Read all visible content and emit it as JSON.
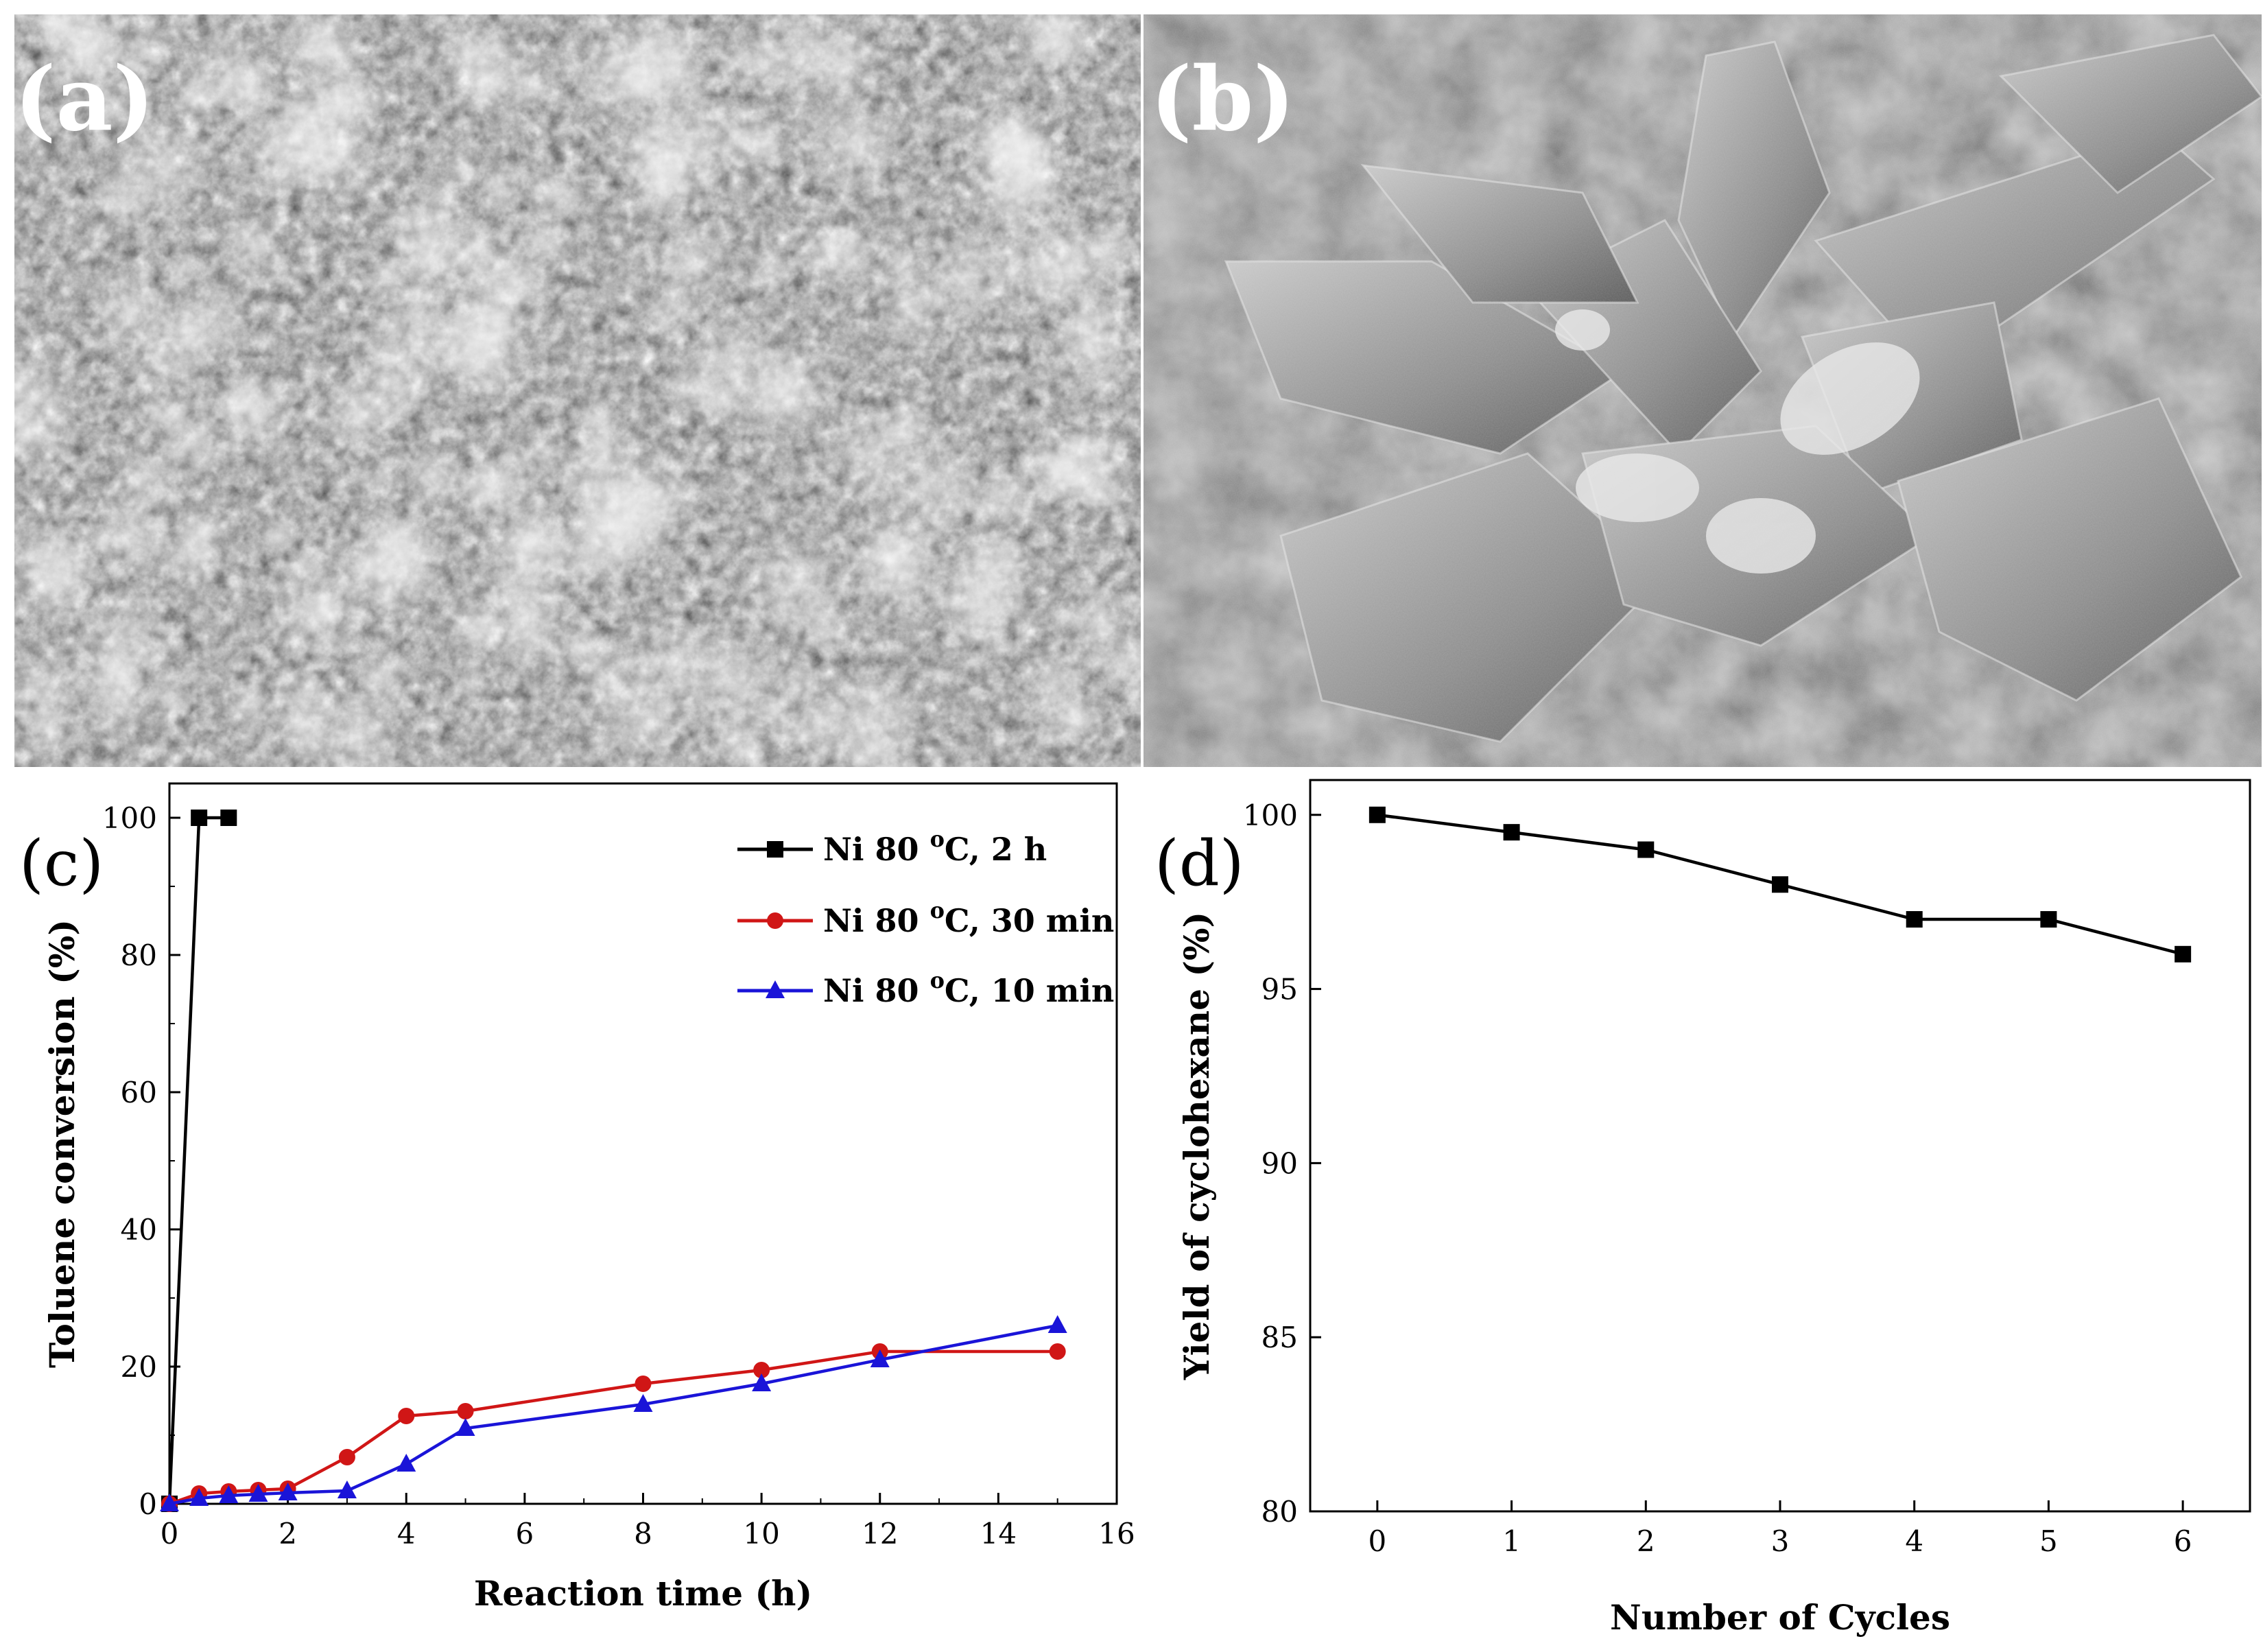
{
  "panels": {
    "a": {
      "label": "(a)"
    },
    "b": {
      "label": "(b)"
    },
    "c": {
      "label": "(c)"
    },
    "d": {
      "label": "(d)"
    }
  },
  "colors": {
    "black": "#000000",
    "red": "#d01616",
    "blue": "#1a14d8",
    "sem_dark": "#1e1e1e",
    "sem_light": "#d6d6d6"
  },
  "chart_data": [
    {
      "panel": "c",
      "type": "line",
      "xlabel": "Reaction time (h)",
      "ylabel": "Toluene conversion (%)",
      "xlim": [
        0,
        16
      ],
      "ylim": [
        0,
        105
      ],
      "xticks": [
        0,
        2,
        4,
        6,
        8,
        10,
        12,
        14,
        16
      ],
      "yticks": [
        0,
        20,
        40,
        60,
        80,
        100
      ],
      "legend_position": "top-right",
      "series": [
        {
          "name": "Ni 80 °C, 2 h",
          "label_main": "Ni 80 ",
          "label_sup": "o",
          "label_tail": "C, 2 h",
          "color": "#000000",
          "marker": "square",
          "x": [
            0,
            0.5,
            1
          ],
          "y": [
            0,
            100,
            100
          ]
        },
        {
          "name": "Ni 80 °C, 30 min",
          "label_main": "Ni 80 ",
          "label_sup": "o",
          "label_tail": "C, 30 min",
          "color": "#d01616",
          "marker": "circle",
          "x": [
            0,
            0.5,
            1,
            1.5,
            2,
            3,
            4,
            5,
            8,
            10,
            12,
            15
          ],
          "y": [
            0,
            1.5,
            1.8,
            2,
            2.2,
            6.8,
            12.8,
            13.5,
            17.5,
            19.5,
            22.2,
            22.2
          ]
        },
        {
          "name": "Ni 80 °C, 10 min",
          "label_main": "Ni 80 ",
          "label_sup": "o",
          "label_tail": "C, 10 min",
          "color": "#1a14d8",
          "marker": "triangle",
          "x": [
            0,
            0.5,
            1,
            1.5,
            2,
            3,
            4,
            5,
            8,
            10,
            12,
            15
          ],
          "y": [
            0,
            0.8,
            1.2,
            1.4,
            1.6,
            1.9,
            5.8,
            11,
            14.5,
            17.5,
            21,
            26
          ]
        }
      ]
    },
    {
      "panel": "d",
      "type": "line",
      "xlabel": "Number of Cycles",
      "ylabel": "Yield of cyclohexane (%)",
      "xlim": [
        -0.5,
        6.5
      ],
      "ylim": [
        80,
        101
      ],
      "xticks": [
        0,
        1,
        2,
        3,
        4,
        5,
        6
      ],
      "yticks": [
        80,
        85,
        90,
        95,
        100
      ],
      "series": [
        {
          "color": "#000000",
          "marker": "square",
          "x": [
            0,
            1,
            2,
            3,
            4,
            5,
            6
          ],
          "y": [
            100,
            99.5,
            99,
            98,
            97,
            97,
            96
          ]
        }
      ]
    }
  ]
}
